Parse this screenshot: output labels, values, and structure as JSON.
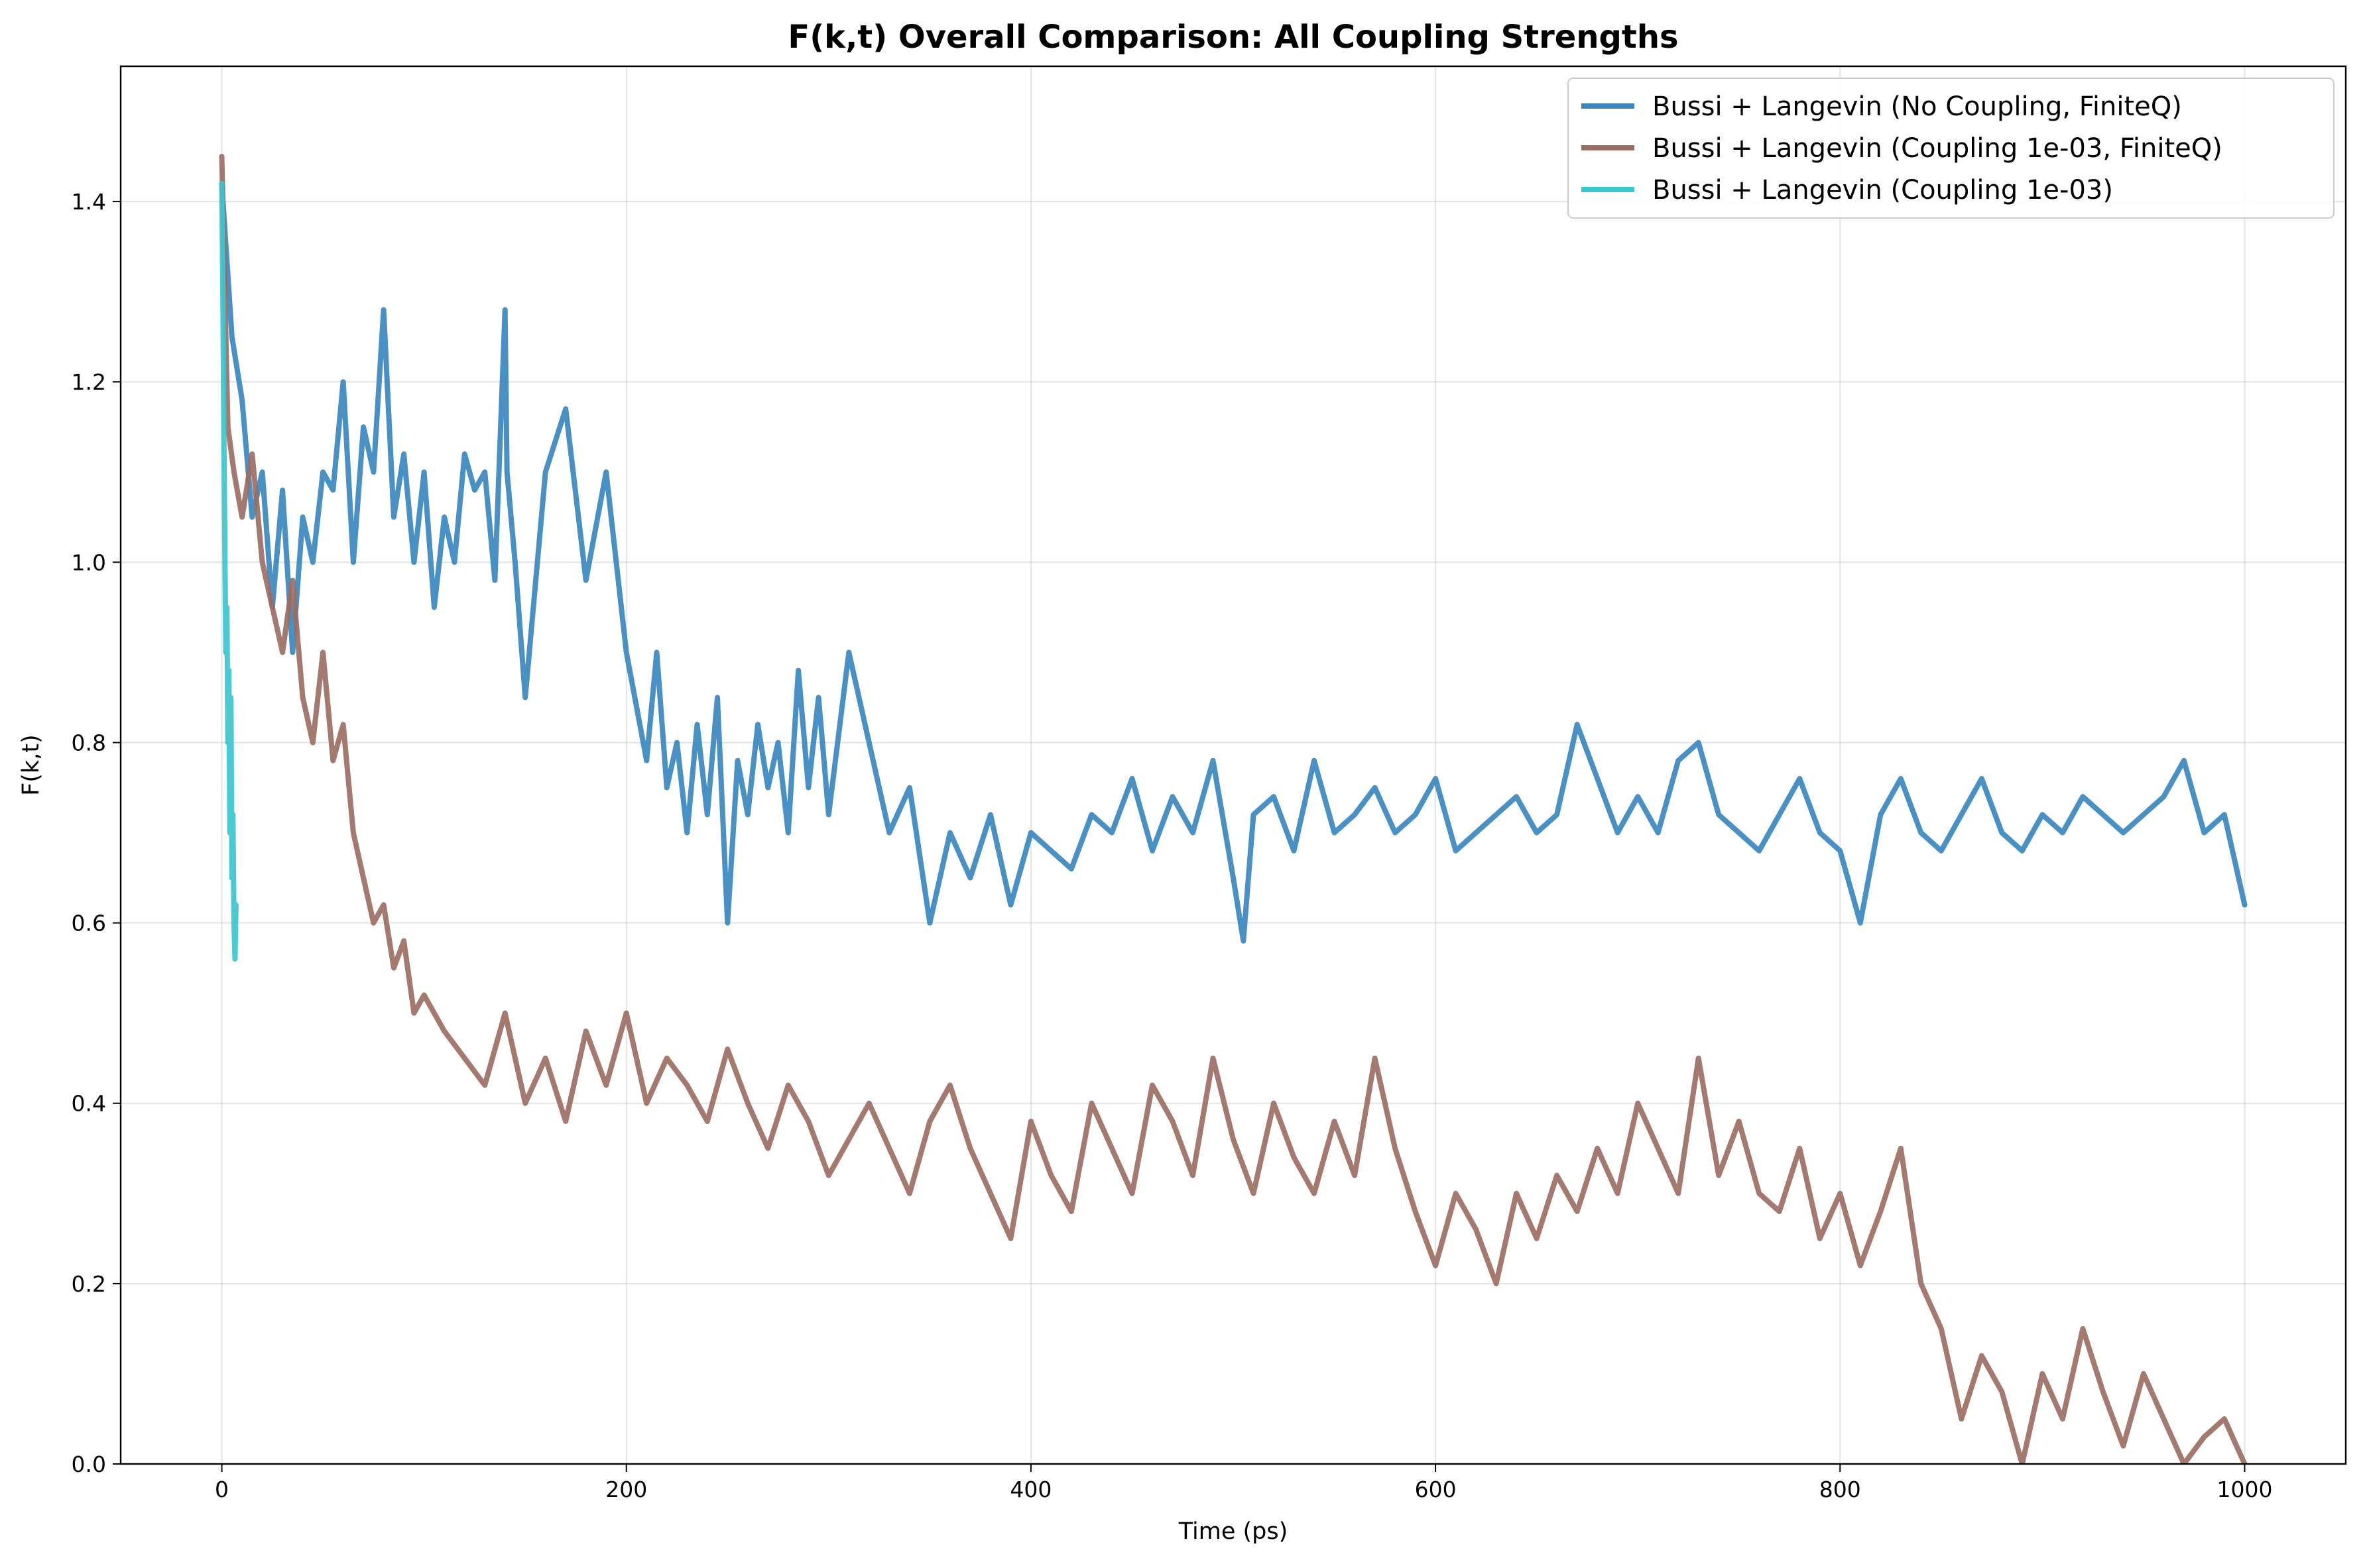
{
  "chart_data": {
    "type": "line",
    "title": "F(k,t) Overall Comparison: All Coupling Strengths",
    "xlabel": "Time (ps)",
    "ylabel": "F(k,t)",
    "xlim": [
      -50,
      1050
    ],
    "ylim": [
      0.0,
      1.55
    ],
    "xticks": [
      "0",
      "200",
      "400",
      "600",
      "800",
      "1000"
    ],
    "xtick_values": [
      0,
      200,
      400,
      600,
      800,
      1000
    ],
    "yticks": [
      "0.0",
      "0.2",
      "0.4",
      "0.6",
      "0.8",
      "1.0",
      "1.2",
      "1.4"
    ],
    "ytick_values": [
      0.0,
      0.2,
      0.4,
      0.6,
      0.8,
      1.0,
      1.2,
      1.4
    ],
    "grid": true,
    "legend_position": "top-right",
    "series": [
      {
        "name": "Bussi + Langevin (No Coupling, FiniteQ)",
        "color": "#3a87c0",
        "x": [
          0,
          5,
          10,
          15,
          20,
          25,
          30,
          35,
          40,
          45,
          50,
          55,
          60,
          65,
          70,
          75,
          80,
          85,
          90,
          95,
          100,
          105,
          110,
          115,
          120,
          125,
          130,
          135,
          140,
          141,
          145,
          150,
          160,
          170,
          180,
          190,
          200,
          210,
          215,
          220,
          225,
          230,
          235,
          240,
          245,
          250,
          255,
          260,
          265,
          270,
          275,
          280,
          285,
          290,
          295,
          300,
          310,
          320,
          330,
          340,
          350,
          360,
          370,
          380,
          390,
          400,
          410,
          420,
          430,
          440,
          450,
          460,
          470,
          480,
          490,
          500,
          505,
          510,
          520,
          530,
          540,
          550,
          560,
          570,
          580,
          590,
          600,
          610,
          620,
          630,
          640,
          650,
          660,
          670,
          680,
          690,
          700,
          710,
          720,
          730,
          740,
          750,
          760,
          770,
          780,
          790,
          800,
          810,
          820,
          830,
          840,
          850,
          860,
          870,
          880,
          890,
          900,
          910,
          920,
          930,
          940,
          950,
          960,
          970,
          980,
          990,
          1000
        ],
        "values": [
          1.42,
          1.25,
          1.18,
          1.05,
          1.1,
          0.95,
          1.08,
          0.9,
          1.05,
          1.0,
          1.1,
          1.08,
          1.2,
          1.0,
          1.15,
          1.1,
          1.28,
          1.05,
          1.12,
          1.0,
          1.1,
          0.95,
          1.05,
          1.0,
          1.12,
          1.08,
          1.1,
          0.98,
          1.28,
          1.1,
          1.0,
          0.85,
          1.1,
          1.17,
          0.98,
          1.1,
          0.9,
          0.78,
          0.9,
          0.75,
          0.8,
          0.7,
          0.82,
          0.72,
          0.85,
          0.6,
          0.78,
          0.72,
          0.82,
          0.75,
          0.8,
          0.7,
          0.88,
          0.75,
          0.85,
          0.72,
          0.9,
          0.8,
          0.7,
          0.75,
          0.6,
          0.7,
          0.65,
          0.72,
          0.62,
          0.7,
          0.68,
          0.66,
          0.72,
          0.7,
          0.76,
          0.68,
          0.74,
          0.7,
          0.78,
          0.65,
          0.58,
          0.72,
          0.74,
          0.68,
          0.78,
          0.7,
          0.72,
          0.75,
          0.7,
          0.72,
          0.76,
          0.68,
          0.7,
          0.72,
          0.74,
          0.7,
          0.72,
          0.82,
          0.76,
          0.7,
          0.74,
          0.7,
          0.78,
          0.8,
          0.72,
          0.7,
          0.68,
          0.72,
          0.76,
          0.7,
          0.68,
          0.6,
          0.72,
          0.76,
          0.7,
          0.68,
          0.72,
          0.76,
          0.7,
          0.68,
          0.72,
          0.7,
          0.74,
          0.72,
          0.7,
          0.72,
          0.74,
          0.78,
          0.7,
          0.72,
          0.62
        ]
      },
      {
        "name": "Bussi + Langevin (Coupling 1e-03, FiniteQ)",
        "color": "#9b6e64",
        "x": [
          0,
          3,
          6,
          10,
          15,
          20,
          25,
          30,
          35,
          40,
          45,
          50,
          55,
          60,
          65,
          70,
          75,
          80,
          85,
          90,
          95,
          100,
          110,
          120,
          130,
          140,
          150,
          160,
          170,
          180,
          190,
          200,
          210,
          220,
          230,
          240,
          250,
          260,
          270,
          280,
          290,
          300,
          310,
          320,
          330,
          340,
          350,
          360,
          370,
          380,
          390,
          400,
          410,
          420,
          430,
          440,
          450,
          460,
          470,
          480,
          490,
          500,
          510,
          520,
          530,
          540,
          550,
          560,
          570,
          580,
          590,
          600,
          610,
          620,
          630,
          640,
          650,
          660,
          670,
          680,
          690,
          700,
          710,
          720,
          730,
          740,
          750,
          760,
          770,
          780,
          790,
          800,
          810,
          820,
          830,
          840,
          850,
          860,
          870,
          880,
          890,
          900,
          910,
          920,
          930,
          940,
          950,
          960,
          970,
          980,
          990,
          1000
        ],
        "values": [
          1.45,
          1.15,
          1.1,
          1.05,
          1.12,
          1.0,
          0.95,
          0.9,
          0.98,
          0.85,
          0.8,
          0.9,
          0.78,
          0.82,
          0.7,
          0.65,
          0.6,
          0.62,
          0.55,
          0.58,
          0.5,
          0.52,
          0.48,
          0.45,
          0.42,
          0.5,
          0.4,
          0.45,
          0.38,
          0.48,
          0.42,
          0.5,
          0.4,
          0.45,
          0.42,
          0.38,
          0.46,
          0.4,
          0.35,
          0.42,
          0.38,
          0.32,
          0.36,
          0.4,
          0.35,
          0.3,
          0.38,
          0.42,
          0.35,
          0.3,
          0.25,
          0.38,
          0.32,
          0.28,
          0.4,
          0.35,
          0.3,
          0.42,
          0.38,
          0.32,
          0.45,
          0.36,
          0.3,
          0.4,
          0.34,
          0.3,
          0.38,
          0.32,
          0.45,
          0.35,
          0.28,
          0.22,
          0.3,
          0.26,
          0.2,
          0.3,
          0.25,
          0.32,
          0.28,
          0.35,
          0.3,
          0.4,
          0.35,
          0.3,
          0.45,
          0.32,
          0.38,
          0.3,
          0.28,
          0.35,
          0.25,
          0.3,
          0.22,
          0.28,
          0.35,
          0.2,
          0.15,
          0.05,
          0.12,
          0.08,
          0.0,
          0.1,
          0.05,
          0.15,
          0.08,
          0.02,
          0.1,
          0.05,
          0.0,
          0.03,
          0.05,
          0.0
        ]
      },
      {
        "name": "Bussi + Langevin (Coupling 1e-03)",
        "color": "#3cc6d0",
        "x": [
          0,
          0.5,
          1,
          1.5,
          2,
          2.5,
          3,
          3.5,
          4,
          4.5,
          5,
          5.5,
          6,
          6.5,
          7
        ],
        "values": [
          1.42,
          1.3,
          1.15,
          1.02,
          0.9,
          0.95,
          0.8,
          0.88,
          0.7,
          0.85,
          0.65,
          0.72,
          0.6,
          0.56,
          0.62
        ]
      }
    ]
  }
}
